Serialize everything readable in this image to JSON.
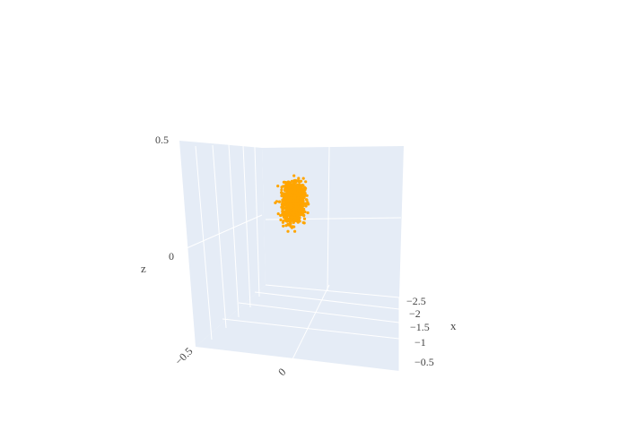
{
  "chart_data": {
    "type": "scatter",
    "title": "",
    "axes": {
      "x": {
        "label": "x",
        "ticks": [
          "−2.5",
          "−2",
          "−1.5",
          "−1",
          "−0.5"
        ],
        "range": [
          -2.7,
          -0.3
        ]
      },
      "y": {
        "label": "",
        "ticks": [
          "−0.5",
          "0"
        ],
        "range": [
          -0.75,
          0.45
        ]
      },
      "z": {
        "label": "z",
        "ticks": [
          "0.5",
          "0"
        ],
        "range": [
          -0.5,
          0.5
        ]
      }
    },
    "series": [
      {
        "color": "#ffa500",
        "marker": "circle",
        "clusters": [
          {
            "center": {
              "x": -1.7,
              "y": 0.1,
              "z": 0.25
            },
            "spread": 0.08,
            "approx_points": 700
          },
          {
            "center": {
              "x": -1.2,
              "y": -0.25,
              "z": 0.2
            },
            "spread": 0.08,
            "approx_points": 450
          }
        ]
      }
    ],
    "scene": {
      "background": "#e5ecf6",
      "grid_color": "#ffffff",
      "projection": "3d"
    }
  }
}
